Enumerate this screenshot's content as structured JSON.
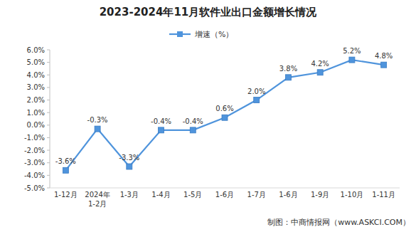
{
  "chart_data": {
    "type": "line",
    "title": "2023-2024年11月软件业出口金额增长情况",
    "source": "制图：中商情报网（www.ASKCI.COM）",
    "categories": [
      "1-12月",
      "2024年\n1-2月",
      "1-3月",
      "1-4月",
      "1-5月",
      "1-6月",
      "1-7月",
      "1-6月",
      "1-9月",
      "1-10月",
      "1-11月"
    ],
    "series": [
      {
        "name": "增速（%）",
        "color": "#4f94dc",
        "marker": "square",
        "line_style": "solid",
        "values": [
          -3.6,
          -0.3,
          -3.3,
          -0.4,
          -0.4,
          0.6,
          2.0,
          3.8,
          4.2,
          5.2,
          4.8
        ],
        "value_labels": [
          "-3.6%",
          "-0.3%",
          "-3.3%",
          "-0.4%",
          "-0.4%",
          "0.6%",
          "2.0%",
          "3.8%",
          "4.2%",
          "5.2%",
          "4.8%"
        ]
      }
    ],
    "ylim": [
      -5,
      6
    ],
    "yticks": [
      {
        "value": -5,
        "label": "-5.0%"
      },
      {
        "value": -4,
        "label": "-4.0%"
      },
      {
        "value": -3,
        "label": "-3.0%"
      },
      {
        "value": -2,
        "label": "-2.0%"
      },
      {
        "value": -1,
        "label": "-1.0%"
      },
      {
        "value": 0,
        "label": "0.0%"
      },
      {
        "value": 1,
        "label": "1.0%"
      },
      {
        "value": 2,
        "label": "2.0%"
      },
      {
        "value": 3,
        "label": "3.0%"
      },
      {
        "value": 4,
        "label": "4.0%"
      },
      {
        "value": 5,
        "label": "5.0%"
      },
      {
        "value": 6,
        "label": "6.0%"
      }
    ],
    "grid": false,
    "legend": "top",
    "data_labels": true
  }
}
